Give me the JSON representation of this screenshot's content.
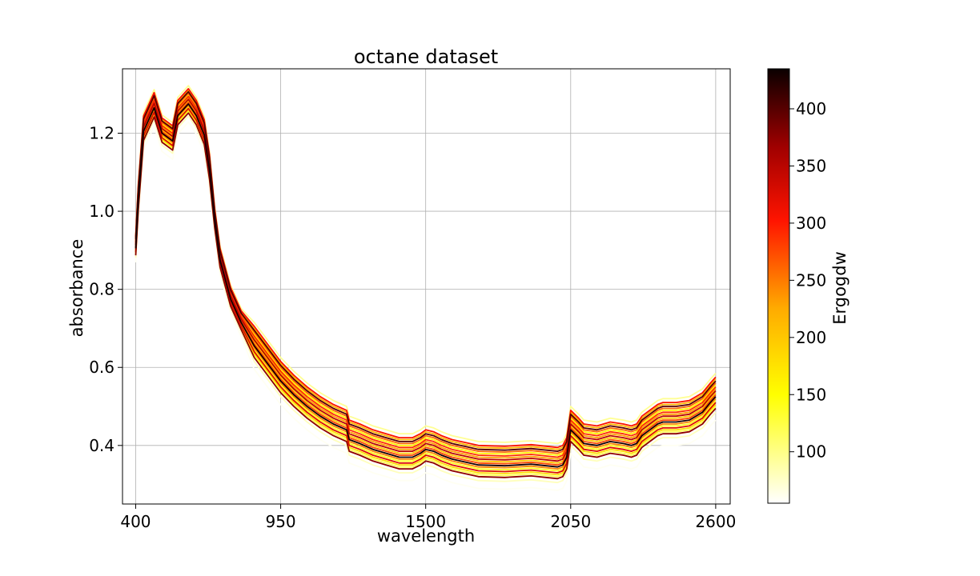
{
  "chart_data": {
    "type": "line",
    "title": "octane dataset",
    "xlabel": "wavelength",
    "ylabel": "absorbance",
    "xlim": [
      350,
      2655
    ],
    "ylim": [
      0.25,
      1.365
    ],
    "xticks": [
      400,
      950,
      1500,
      2050,
      2600
    ],
    "yticks": [
      0.4,
      0.6,
      0.8,
      1.0,
      1.2
    ],
    "ytick_labels": [
      "0.4",
      "0.6",
      "0.8",
      "1.0",
      "1.2"
    ],
    "grid": true,
    "colorbar": {
      "label": "Ergogdw",
      "colormap": "hot_r",
      "range": [
        55,
        435
      ],
      "ticks": [
        100,
        150,
        200,
        250,
        300,
        350,
        400
      ]
    },
    "x": [
      400,
      410,
      430,
      470,
      500,
      540,
      560,
      600,
      630,
      660,
      680,
      700,
      720,
      760,
      800,
      850,
      900,
      950,
      1000,
      1050,
      1100,
      1150,
      1200,
      1210,
      1250,
      1300,
      1350,
      1400,
      1450,
      1480,
      1500,
      1530,
      1560,
      1600,
      1700,
      1800,
      1850,
      1900,
      2000,
      2020,
      2035,
      2050,
      2080,
      2100,
      2150,
      2200,
      2250,
      2280,
      2300,
      2320,
      2350,
      2380,
      2400,
      2450,
      2500,
      2550,
      2580,
      2600
    ],
    "base_profile": [
      0.905,
      1.03,
      1.205,
      1.265,
      1.2,
      1.18,
      1.245,
      1.275,
      1.245,
      1.195,
      1.105,
      0.975,
      0.875,
      0.775,
      0.715,
      0.655,
      0.61,
      0.565,
      0.53,
      0.5,
      0.475,
      0.455,
      0.44,
      0.415,
      0.405,
      0.39,
      0.38,
      0.37,
      0.37,
      0.38,
      0.39,
      0.385,
      0.375,
      0.365,
      0.35,
      0.348,
      0.35,
      0.352,
      0.345,
      0.35,
      0.37,
      0.44,
      0.42,
      0.405,
      0.4,
      0.41,
      0.405,
      0.4,
      0.405,
      0.425,
      0.44,
      0.455,
      0.46,
      0.46,
      0.465,
      0.485,
      0.51,
      0.525
    ],
    "series": [
      {
        "value": 430,
        "offset": 0.0
      },
      {
        "value": 400,
        "offset": 0.04
      },
      {
        "value": 375,
        "offset": -0.03
      },
      {
        "value": 350,
        "offset": 0.015
      },
      {
        "value": 325,
        "offset": -0.015
      },
      {
        "value": 305,
        "offset": 0.05
      },
      {
        "value": 290,
        "offset": 0.025
      },
      {
        "value": 275,
        "offset": 0.005
      },
      {
        "value": 260,
        "offset": 0.035
      },
      {
        "value": 245,
        "offset": -0.005
      },
      {
        "value": 230,
        "offset": 0.02
      },
      {
        "value": 215,
        "offset": 0.045
      },
      {
        "value": 200,
        "offset": 0.01
      },
      {
        "value": 180,
        "offset": -0.02
      },
      {
        "value": 160,
        "offset": 0.03
      },
      {
        "value": 140,
        "offset": -0.01
      },
      {
        "value": 120,
        "offset": -0.025
      },
      {
        "value": 95,
        "offset": 0.06
      },
      {
        "value": 80,
        "offset": -0.04
      },
      {
        "value": 60,
        "offset": -0.06
      }
    ]
  }
}
